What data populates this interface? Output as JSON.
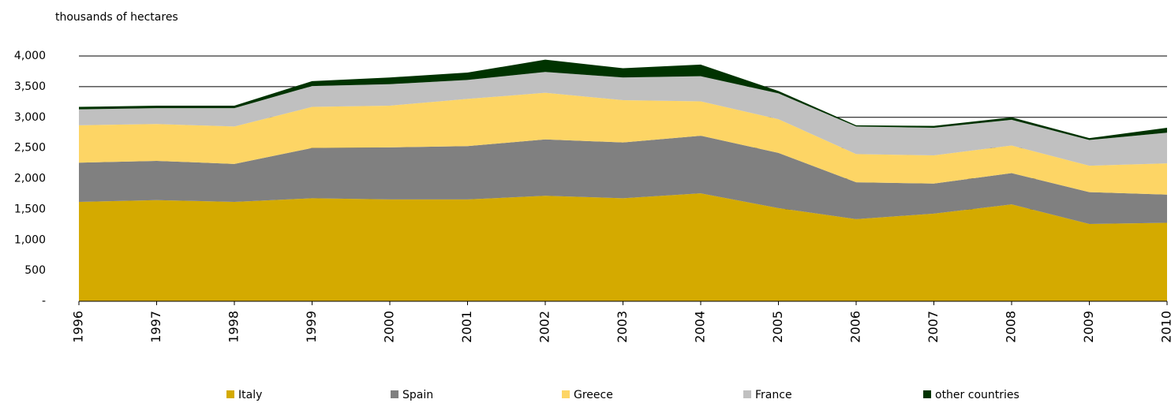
{
  "chart_data": {
    "type": "stacked_area",
    "y_axis_label": "thousands of hectares",
    "categories": [
      "1996",
      "1997",
      "1998",
      "1999",
      "2000",
      "2001",
      "2002",
      "2003",
      "2004",
      "2005",
      "2006",
      "2007",
      "2008",
      "2009",
      "2010"
    ],
    "series": [
      {
        "name": "Italy",
        "color": "#d4aa00",
        "values": [
          1620,
          1650,
          1620,
          1680,
          1660,
          1660,
          1720,
          1680,
          1760,
          1520,
          1340,
          1430,
          1580,
          1260,
          1280
        ]
      },
      {
        "name": "Spain",
        "color": "#808080",
        "values": [
          640,
          640,
          620,
          820,
          850,
          870,
          920,
          910,
          940,
          900,
          600,
          490,
          510,
          520,
          460
        ]
      },
      {
        "name": "Greece",
        "color": "#fdd565",
        "values": [
          610,
          600,
          610,
          670,
          680,
          770,
          760,
          690,
          560,
          550,
          460,
          460,
          450,
          430,
          510
        ]
      },
      {
        "name": "France",
        "color": "#c0c0c0",
        "values": [
          260,
          260,
          300,
          340,
          350,
          310,
          340,
          370,
          410,
          420,
          450,
          450,
          420,
          420,
          500
        ]
      },
      {
        "name": "other countries",
        "color": "#003300",
        "values": [
          40,
          40,
          40,
          80,
          110,
          120,
          200,
          150,
          190,
          40,
          20,
          30,
          40,
          30,
          80
        ]
      }
    ],
    "ylim": [
      0,
      4000
    ],
    "yticks": [
      {
        "value": 0,
        "label": "-"
      },
      500,
      {
        "value": 1000,
        "label": "1,000"
      },
      {
        "value": 1500,
        "label": "1,500"
      },
      {
        "value": 2000,
        "label": "2,000"
      },
      {
        "value": 2500,
        "label": "2,500"
      },
      {
        "value": 3000,
        "label": "3,000"
      },
      {
        "value": 3500,
        "label": "3,500"
      },
      {
        "value": 4000,
        "label": "4,000"
      }
    ],
    "grid": true
  }
}
